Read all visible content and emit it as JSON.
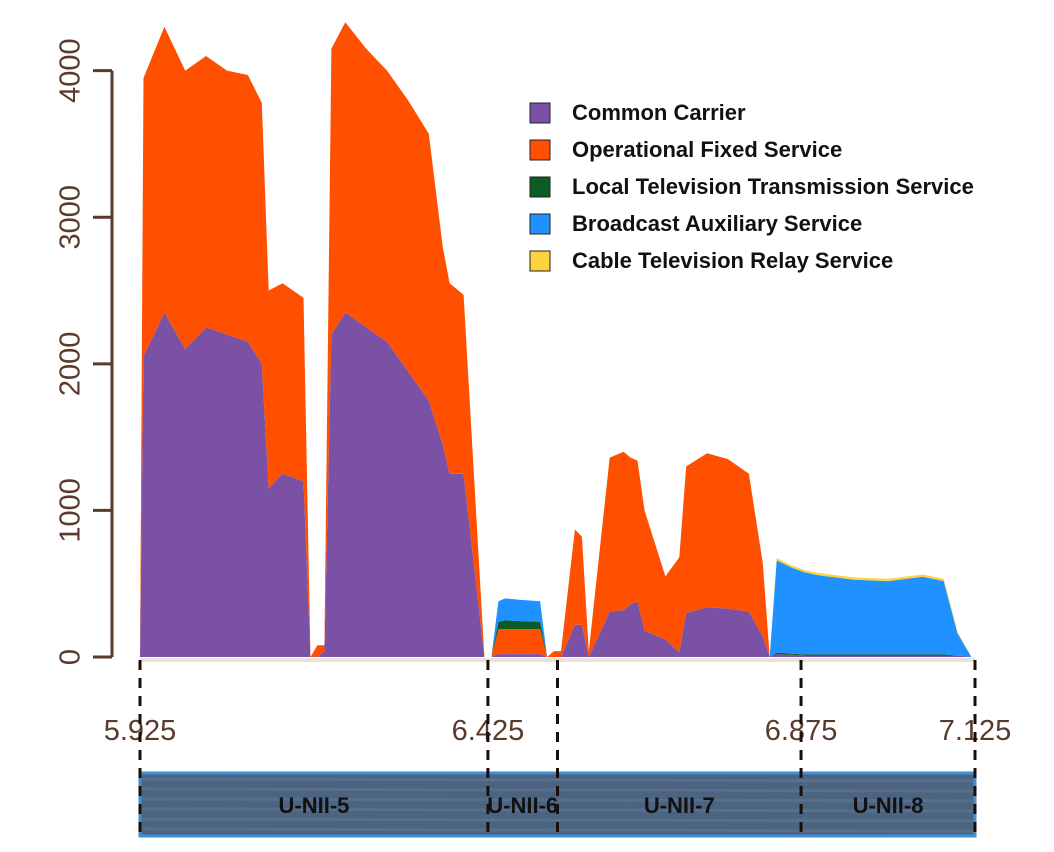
{
  "chart_data": {
    "type": "area",
    "stacked": true,
    "title": "",
    "xlabel": "",
    "ylabel": "",
    "xlim": [
      5.925,
      7.125
    ],
    "ylim": [
      0,
      4400
    ],
    "y_ticks": [
      0,
      1000,
      2000,
      3000,
      4000
    ],
    "y_tick_labels": [
      "0",
      "1000",
      "2000",
      "3000",
      "4000"
    ],
    "x_ticks": [
      5.925,
      6.425,
      6.875,
      7.125
    ],
    "x_tick_labels": [
      "5.925",
      "6.425",
      "6.875",
      "7.125"
    ],
    "grid": false,
    "legend_position": "top-right",
    "x": [
      5.925,
      5.93,
      5.96,
      5.99,
      6.02,
      6.05,
      6.08,
      6.1,
      6.11,
      6.13,
      6.16,
      6.17,
      6.18,
      6.19,
      6.2,
      6.22,
      6.25,
      6.28,
      6.31,
      6.34,
      6.36,
      6.37,
      6.39,
      6.42,
      6.43,
      6.44,
      6.45,
      6.47,
      6.5,
      6.51,
      6.52,
      6.53,
      6.55,
      6.56,
      6.57,
      6.6,
      6.62,
      6.63,
      6.64,
      6.65,
      6.68,
      6.7,
      6.71,
      6.74,
      6.77,
      6.8,
      6.82,
      6.83,
      6.84,
      6.86,
      6.88,
      6.9,
      6.95,
      7.0,
      7.05,
      7.08,
      7.1,
      7.12
    ],
    "series": [
      {
        "name": "Common Carrier",
        "color": "#7a51a5",
        "values": [
          0,
          2050,
          2350,
          2100,
          2250,
          2200,
          2150,
          2000,
          1150,
          1250,
          1200,
          0,
          0,
          40,
          2200,
          2350,
          2250,
          2150,
          1950,
          1750,
          1450,
          1250,
          1250,
          0,
          0,
          20,
          20,
          20,
          20,
          0,
          0,
          0,
          220,
          220,
          0,
          310,
          320,
          360,
          380,
          180,
          120,
          30,
          300,
          340,
          330,
          310,
          140,
          0,
          20,
          15,
          10,
          10,
          10,
          10,
          10,
          10,
          10,
          0
        ]
      },
      {
        "name": "Operational Fixed Service",
        "color": "#ff4f00",
        "values": [
          0,
          1900,
          1950,
          1900,
          1850,
          1800,
          1820,
          1780,
          1350,
          1300,
          1250,
          0,
          80,
          40,
          1950,
          1980,
          1900,
          1850,
          1850,
          1820,
          1350,
          1300,
          1220,
          0,
          0,
          170,
          170,
          170,
          170,
          0,
          40,
          40,
          650,
          600,
          40,
          1050,
          1080,
          1000,
          960,
          820,
          430,
          650,
          1000,
          1050,
          1020,
          940,
          500,
          0,
          0,
          0,
          0,
          0,
          0,
          0,
          0,
          0,
          0,
          0
        ]
      },
      {
        "name": "Local Television Transmission Service",
        "color": "#0c5a24",
        "values": [
          0,
          0,
          0,
          0,
          0,
          0,
          0,
          0,
          0,
          0,
          0,
          0,
          0,
          0,
          0,
          0,
          0,
          0,
          0,
          0,
          0,
          0,
          0,
          0,
          0,
          50,
          60,
          55,
          50,
          0,
          0,
          0,
          0,
          0,
          0,
          0,
          0,
          0,
          0,
          0,
          0,
          0,
          0,
          0,
          0,
          0,
          0,
          0,
          10,
          8,
          8,
          8,
          8,
          8,
          8,
          8,
          0,
          0
        ]
      },
      {
        "name": "Broadcast Auxiliary Service",
        "color": "#1f92ff",
        "values": [
          0,
          0,
          0,
          0,
          0,
          0,
          0,
          0,
          0,
          0,
          0,
          0,
          0,
          0,
          0,
          0,
          0,
          0,
          0,
          0,
          0,
          0,
          0,
          0,
          0,
          140,
          150,
          145,
          140,
          0,
          0,
          0,
          0,
          0,
          0,
          0,
          0,
          0,
          0,
          0,
          0,
          0,
          0,
          0,
          0,
          0,
          0,
          0,
          630,
          590,
          560,
          540,
          510,
          500,
          530,
          500,
          150,
          0
        ]
      },
      {
        "name": "Cable Television Relay Service",
        "color": "#ffd33b",
        "values": [
          0,
          0,
          0,
          0,
          0,
          0,
          0,
          0,
          0,
          0,
          0,
          0,
          0,
          0,
          0,
          0,
          0,
          0,
          0,
          0,
          0,
          0,
          0,
          0,
          0,
          0,
          0,
          0,
          0,
          0,
          0,
          0,
          0,
          0,
          0,
          0,
          0,
          0,
          0,
          0,
          0,
          0,
          0,
          0,
          0,
          0,
          0,
          0,
          15,
          15,
          15,
          15,
          15,
          15,
          15,
          15,
          10,
          0
        ]
      }
    ],
    "bands": [
      {
        "label": "U-NII-5",
        "start": 5.925,
        "end": 6.425
      },
      {
        "label": "U-NII-6",
        "start": 6.425,
        "end": 6.525
      },
      {
        "label": "U-NII-7",
        "start": 6.525,
        "end": 6.875
      },
      {
        "label": "U-NII-8",
        "start": 6.875,
        "end": 7.125
      }
    ],
    "colors": {
      "axis": "#5b3a2e",
      "band_fill": "#4d6480",
      "band_stripe": "#5d7896",
      "band_border": "#3f8fd6",
      "divider": "#1a0e0a"
    }
  }
}
